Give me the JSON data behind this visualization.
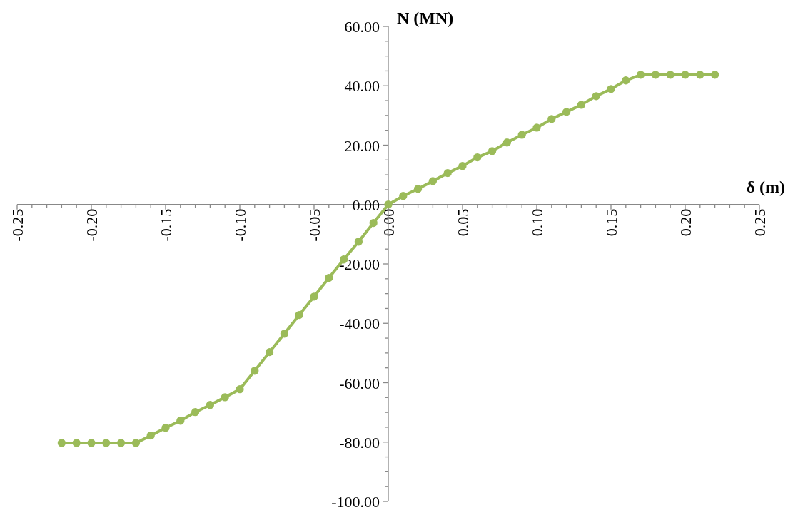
{
  "chart_data": {
    "type": "line",
    "xlabel": "δ (m)",
    "ylabel": "N (MN)",
    "x": [
      -0.22,
      -0.21,
      -0.2,
      -0.19,
      -0.18,
      -0.17,
      -0.16,
      -0.15,
      -0.14,
      -0.13,
      -0.12,
      -0.11,
      -0.1,
      -0.09,
      -0.08,
      -0.07,
      -0.06,
      -0.05,
      -0.04,
      -0.03,
      -0.02,
      -0.01,
      0,
      0.01,
      0.02,
      0.03,
      0.04,
      0.05,
      0.06,
      0.07,
      0.08,
      0.09,
      0.1,
      0.11,
      0.12,
      0.13,
      0.14,
      0.15,
      0.16,
      0.17,
      0.18,
      0.19,
      0.2,
      0.21,
      0.22
    ],
    "series": [
      {
        "color": "#9bbb59",
        "values": [
          -80.3,
          -80.3,
          -80.3,
          -80.3,
          -80.3,
          -80.3,
          -77.8,
          -75.2,
          -72.8,
          -69.9,
          -67.5,
          -64.9,
          -62.2,
          -56.0,
          -49.7,
          -43.5,
          -37.2,
          -31.0,
          -24.7,
          -18.5,
          -12.5,
          -6.2,
          0,
          2.9,
          5.3,
          7.9,
          10.6,
          13.0,
          15.9,
          18.0,
          20.9,
          23.5,
          25.9,
          28.8,
          31.2,
          33.6,
          36.5,
          38.9,
          41.8,
          43.7,
          43.7,
          43.7,
          43.7,
          43.7,
          43.7
        ]
      }
    ],
    "xlim": [
      -0.25,
      0.25
    ],
    "xticks": [
      {
        "value": -0.25,
        "label": "-0.25"
      },
      {
        "value": -0.24,
        "label": null
      },
      {
        "value": -0.23,
        "label": null
      },
      {
        "value": -0.22,
        "label": null
      },
      {
        "value": -0.21,
        "label": null
      },
      {
        "value": -0.2,
        "label": "-0.20"
      },
      {
        "value": -0.19,
        "label": null
      },
      {
        "value": -0.18,
        "label": null
      },
      {
        "value": -0.17,
        "label": null
      },
      {
        "value": -0.16,
        "label": null
      },
      {
        "value": -0.15,
        "label": "-0.15"
      },
      {
        "value": -0.14,
        "label": null
      },
      {
        "value": -0.13,
        "label": null
      },
      {
        "value": -0.12,
        "label": null
      },
      {
        "value": -0.11,
        "label": null
      },
      {
        "value": -0.1,
        "label": "-0.10"
      },
      {
        "value": -0.09,
        "label": null
      },
      {
        "value": -0.08,
        "label": null
      },
      {
        "value": -0.07,
        "label": null
      },
      {
        "value": -0.06,
        "label": null
      },
      {
        "value": -0.05,
        "label": "-0.05"
      },
      {
        "value": -0.04,
        "label": null
      },
      {
        "value": -0.03,
        "label": null
      },
      {
        "value": -0.02,
        "label": null
      },
      {
        "value": -0.01,
        "label": null
      },
      {
        "value": 0,
        "label": "0.00"
      },
      {
        "value": 0.01,
        "label": null
      },
      {
        "value": 0.02,
        "label": null
      },
      {
        "value": 0.03,
        "label": null
      },
      {
        "value": 0.04,
        "label": null
      },
      {
        "value": 0.05,
        "label": "0.05"
      },
      {
        "value": 0.06,
        "label": null
      },
      {
        "value": 0.07,
        "label": null
      },
      {
        "value": 0.08,
        "label": null
      },
      {
        "value": 0.09,
        "label": null
      },
      {
        "value": 0.1,
        "label": "0.10"
      },
      {
        "value": 0.11,
        "label": null
      },
      {
        "value": 0.12,
        "label": null
      },
      {
        "value": 0.13,
        "label": null
      },
      {
        "value": 0.14,
        "label": null
      },
      {
        "value": 0.15,
        "label": "0.15"
      },
      {
        "value": 0.16,
        "label": null
      },
      {
        "value": 0.17,
        "label": null
      },
      {
        "value": 0.18,
        "label": null
      },
      {
        "value": 0.19,
        "label": null
      },
      {
        "value": 0.2,
        "label": "0.20"
      },
      {
        "value": 0.21,
        "label": null
      },
      {
        "value": 0.22,
        "label": null
      },
      {
        "value": 0.23,
        "label": null
      },
      {
        "value": 0.24,
        "label": null
      },
      {
        "value": 0.25,
        "label": "0.25"
      }
    ],
    "ylim": [
      -100,
      60
    ],
    "yticks": [
      {
        "value": -100,
        "label": "-100.00"
      },
      {
        "value": -95,
        "label": null
      },
      {
        "value": -90,
        "label": null
      },
      {
        "value": -85,
        "label": null
      },
      {
        "value": -80,
        "label": "-80.00"
      },
      {
        "value": -75,
        "label": null
      },
      {
        "value": -70,
        "label": null
      },
      {
        "value": -65,
        "label": null
      },
      {
        "value": -60,
        "label": "-60.00"
      },
      {
        "value": -55,
        "label": null
      },
      {
        "value": -50,
        "label": null
      },
      {
        "value": -45,
        "label": null
      },
      {
        "value": -40,
        "label": "-40.00"
      },
      {
        "value": -35,
        "label": null
      },
      {
        "value": -30,
        "label": null
      },
      {
        "value": -25,
        "label": null
      },
      {
        "value": -20,
        "label": "-20.00"
      },
      {
        "value": -15,
        "label": null
      },
      {
        "value": -10,
        "label": null
      },
      {
        "value": -5,
        "label": null
      },
      {
        "value": 0,
        "label": "0.00"
      },
      {
        "value": 5,
        "label": null
      },
      {
        "value": 10,
        "label": null
      },
      {
        "value": 15,
        "label": null
      },
      {
        "value": 20,
        "label": "20.00"
      },
      {
        "value": 25,
        "label": null
      },
      {
        "value": 30,
        "label": null
      },
      {
        "value": 35,
        "label": null
      },
      {
        "value": 40,
        "label": "40.00"
      },
      {
        "value": 45,
        "label": null
      },
      {
        "value": 50,
        "label": null
      },
      {
        "value": 55,
        "label": null
      },
      {
        "value": 60,
        "label": "60.00"
      }
    ],
    "grid": false,
    "marker": "circle",
    "line_style": "solid"
  }
}
